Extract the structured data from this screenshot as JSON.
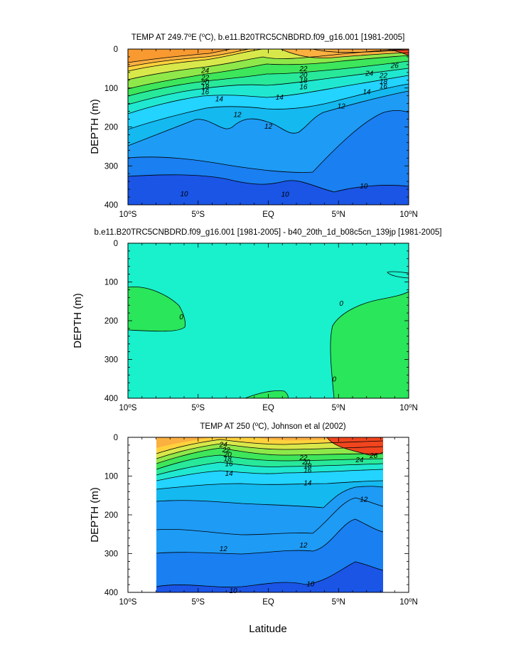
{
  "figure": {
    "xlabel": "Latitude",
    "ylabel": "DEPTH (m)"
  },
  "panels": [
    {
      "title_html": "TEMP AT 249.7°E (°C), b.e11.B20TRC5CNBDRD.f09_g16.001 [1981-2005]",
      "title_parts": [
        "TEMP AT 249.7",
        "o",
        "E (",
        "o",
        "C), b.e11.B20TRC5CNBDRD.f09_g16.001 [1981-2005]"
      ]
    },
    {
      "title": "b.e11.B20TRC5CNBDRD.f09_g16.001 [1981-2005] - b40_20th_1d_b08c5cn_139jp [1981-2005]"
    },
    {
      "title_parts": [
        "TEMP AT 250 (",
        "o",
        "C), Johnson et al (2002)"
      ]
    }
  ],
  "chart_data": [
    {
      "type": "heatmap",
      "title": "TEMP AT 249.7°E (°C), b.e11.B20TRC5CNBDRD.f09_g16.001 [1981-2005]",
      "xlabel": "",
      "ylabel": "DEPTH (m)",
      "xlim": [
        -10,
        10
      ],
      "ylim": [
        400,
        0
      ],
      "x_ticks": [
        "10°S",
        "5°S",
        "EQ",
        "5°N",
        "10°N"
      ],
      "y_ticks": [
        "0",
        "100",
        "200",
        "300",
        "400"
      ],
      "contour_labels": [
        {
          "v": "24",
          "x": -4.5,
          "y": 55
        },
        {
          "v": "22",
          "x": -4.5,
          "y": 73
        },
        {
          "v": "20",
          "x": -4.5,
          "y": 85
        },
        {
          "v": "18",
          "x": -4.5,
          "y": 97
        },
        {
          "v": "16",
          "x": -4.5,
          "y": 110
        },
        {
          "v": "14",
          "x": -3.5,
          "y": 128
        },
        {
          "v": "12",
          "x": -2.2,
          "y": 168
        },
        {
          "v": "12",
          "x": 0.0,
          "y": 198
        },
        {
          "v": "14",
          "x": 0.8,
          "y": 123
        },
        {
          "v": "16",
          "x": 2.5,
          "y": 97
        },
        {
          "v": "18",
          "x": 2.5,
          "y": 80
        },
        {
          "v": "20",
          "x": 2.5,
          "y": 67
        },
        {
          "v": "22",
          "x": 2.5,
          "y": 50
        },
        {
          "v": "12",
          "x": 5.2,
          "y": 146
        },
        {
          "v": "24",
          "x": 7.2,
          "y": 62
        },
        {
          "v": "22",
          "x": 8.2,
          "y": 68
        },
        {
          "v": "18",
          "x": 8.2,
          "y": 83
        },
        {
          "v": "16",
          "x": 8.2,
          "y": 95
        },
        {
          "v": "14",
          "x": 7.0,
          "y": 110
        },
        {
          "v": "26",
          "x": 9.0,
          "y": 42
        },
        {
          "v": "10",
          "x": -6.0,
          "y": 372
        },
        {
          "v": "10",
          "x": 1.2,
          "y": 373
        },
        {
          "v": "10",
          "x": 6.8,
          "y": 352
        }
      ],
      "filled_levels": [
        10,
        12,
        14,
        16,
        18,
        20,
        22,
        24,
        26
      ]
    },
    {
      "type": "heatmap",
      "title": "b.e11.B20TRC5CNBDRD.f09_g16.001 [1981-2005] - b40_20th_1d_b08c5cn_139jp [1981-2005]",
      "ylabel": "DEPTH (m)",
      "xlim": [
        -10,
        10
      ],
      "ylim": [
        400,
        0
      ],
      "x_ticks": [
        "10°S",
        "5°S",
        "EQ",
        "5°N",
        "10°N"
      ],
      "y_ticks": [
        "0",
        "100",
        "200",
        "300",
        "400"
      ],
      "contour_labels": [
        {
          "v": "0",
          "x": -6.2,
          "y": 190
        },
        {
          "v": "0",
          "x": 5.2,
          "y": 155
        },
        {
          "v": "0",
          "x": 4.7,
          "y": 350
        }
      ]
    },
    {
      "type": "heatmap",
      "title": "TEMP AT 250 (°C), Johnson et al (2002)",
      "ylabel": "DEPTH (m)",
      "xlabel": "Latitude",
      "xlim": [
        -10,
        10
      ],
      "ylim": [
        400,
        0
      ],
      "x_ticks": [
        "10°S",
        "5°S",
        "EQ",
        "5°N",
        "10°N"
      ],
      "y_ticks": [
        "0",
        "100",
        "200",
        "300",
        "400"
      ],
      "data_x_range": [
        -8,
        8
      ],
      "contour_labels": [
        {
          "v": "24",
          "x": -3.2,
          "y": 18
        },
        {
          "v": "22",
          "x": -3.0,
          "y": 32
        },
        {
          "v": "20",
          "x": -2.9,
          "y": 44
        },
        {
          "v": "18",
          "x": -2.9,
          "y": 55
        },
        {
          "v": "16",
          "x": -2.8,
          "y": 68
        },
        {
          "v": "14",
          "x": -2.8,
          "y": 93
        },
        {
          "v": "22",
          "x": 2.5,
          "y": 52
        },
        {
          "v": "20",
          "x": 2.7,
          "y": 63
        },
        {
          "v": "18",
          "x": 2.8,
          "y": 73
        },
        {
          "v": "16",
          "x": 2.8,
          "y": 84
        },
        {
          "v": "14",
          "x": 2.8,
          "y": 117
        },
        {
          "v": "24",
          "x": 6.5,
          "y": 58
        },
        {
          "v": "26",
          "x": 7.5,
          "y": 47
        },
        {
          "v": "12",
          "x": 6.8,
          "y": 160
        },
        {
          "v": "12",
          "x": -3.2,
          "y": 287
        },
        {
          "v": "12",
          "x": 2.5,
          "y": 278
        },
        {
          "v": "10",
          "x": -2.5,
          "y": 395
        },
        {
          "v": "10",
          "x": 3.0,
          "y": 378
        }
      ],
      "filled_levels": [
        10,
        12,
        14,
        16,
        18,
        20,
        22,
        24,
        26
      ]
    }
  ]
}
